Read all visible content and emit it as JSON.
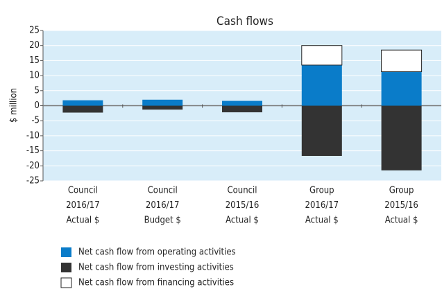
{
  "chart_data": {
    "type": "bar",
    "stacked": true,
    "title": "Cash flows",
    "y_label": "$ million",
    "categories": [
      [
        "Council",
        "2016/17",
        "Actual $"
      ],
      [
        "Council",
        "2016/17",
        "Budget $"
      ],
      [
        "Council",
        "2015/16",
        "Actual $"
      ],
      [
        "Group",
        "2016/17",
        "Actual $"
      ],
      [
        "Group",
        "2015/16",
        "Actual $"
      ]
    ],
    "series": [
      {
        "name": "Net cash flow from operating activities",
        "color": "#0a7cc9",
        "values": [
          1.8,
          2.0,
          1.6,
          13.5,
          11.3
        ]
      },
      {
        "name": "Net cash flow from investing activities",
        "color": "#333333",
        "values": [
          -2.3,
          -1.3,
          -2.2,
          -16.7,
          -21.5
        ]
      },
      {
        "name": "Net cash flow from financing activities",
        "color": "#ffffff",
        "values": [
          0,
          0,
          0,
          6.5,
          7.2
        ]
      }
    ],
    "ylim": [
      -25,
      25
    ],
    "yticks": [
      -25,
      -20,
      -15,
      -10,
      -5,
      0,
      5,
      10,
      15,
      20,
      25
    ],
    "grid": true,
    "legend": "bottom"
  }
}
